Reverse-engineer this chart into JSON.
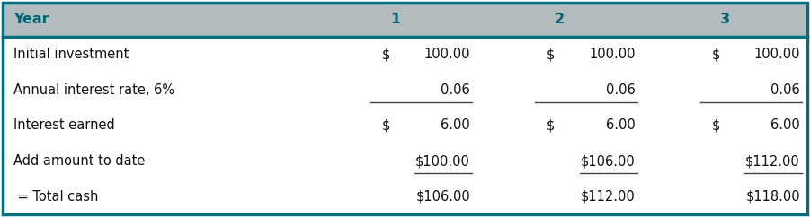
{
  "header_bg": "#b2bbbe",
  "header_text_color": "#006472",
  "body_bg": "#ffffff",
  "border_color": "#007080",
  "header_row": [
    "Year",
    "1",
    "2",
    "3"
  ],
  "rows": [
    {
      "label": "Initial investment",
      "cols": [
        [
          "$",
          "100.00"
        ],
        [
          "$",
          "100.00"
        ],
        [
          "$",
          "100.00"
        ]
      ],
      "underline_above": false,
      "double_underline_below": false,
      "single_underline_below": false,
      "combined": false
    },
    {
      "label": "Annual interest rate, 6%",
      "cols": [
        [
          "",
          "0.06"
        ],
        [
          "",
          "0.06"
        ],
        [
          "",
          "0.06"
        ]
      ],
      "underline_above": false,
      "double_underline_below": false,
      "single_underline_below": true,
      "combined": false
    },
    {
      "label": "Interest earned",
      "cols": [
        [
          "$",
          "6.00"
        ],
        [
          "$",
          "6.00"
        ],
        [
          "$",
          "6.00"
        ]
      ],
      "underline_above": false,
      "double_underline_below": false,
      "single_underline_below": false,
      "combined": false
    },
    {
      "label": "Add amount to date",
      "cols": [
        [
          "$100.00",
          ""
        ],
        [
          "$106.00",
          ""
        ],
        [
          "$112.00",
          ""
        ]
      ],
      "underline_above": false,
      "double_underline_below": false,
      "single_underline_below": true,
      "combined": true
    },
    {
      "label": " = Total cash",
      "cols": [
        [
          "$106.00",
          ""
        ],
        [
          "$112.00",
          ""
        ],
        [
          "$118.00",
          ""
        ]
      ],
      "underline_above": false,
      "double_underline_below": false,
      "single_underline_below": false,
      "combined": true
    }
  ],
  "figsize": [
    9.01,
    2.42
  ],
  "dpi": 100,
  "header_fontsize": 11.5,
  "body_fontsize": 10.5,
  "font_family": "DejaVu Sans"
}
